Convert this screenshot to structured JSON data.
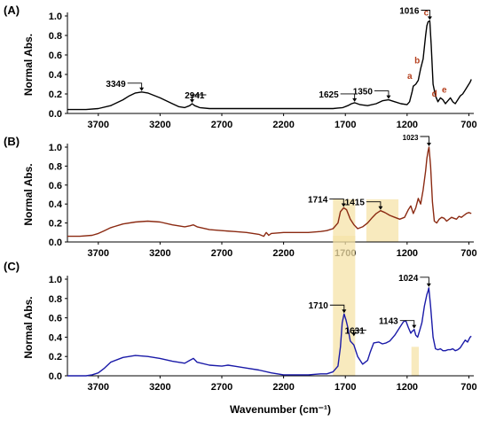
{
  "x_axis_title": "Wavenumber (cm⁻¹)",
  "y_axis_title": "Normal Abs.",
  "chart_data": [
    {
      "type": "line",
      "panel_label": "(A)",
      "ylabel": "Normal Abs.",
      "xlabel": "",
      "x_reversed": true,
      "xlim": [
        3950,
        660
      ],
      "ylim": [
        0,
        1.0
      ],
      "x_ticks": [
        "3700",
        "3200",
        "2700",
        "2200",
        "1700",
        "1200",
        "700"
      ],
      "y_ticks": [
        "0.0",
        "0.2",
        "0.4",
        "0.6",
        "0.8",
        "1.0"
      ],
      "line_color": "#000000",
      "series": [
        {
          "x": [
            3950,
            3800,
            3700,
            3600,
            3500,
            3450,
            3400,
            3349,
            3300,
            3200,
            3100,
            3050,
            3000,
            2960,
            2941,
            2920,
            2880,
            2800,
            2700,
            2500,
            2300,
            2100,
            1900,
            1800,
            1720,
            1680,
            1650,
            1625,
            1580,
            1520,
            1450,
            1400,
            1350,
            1300,
            1250,
            1200,
            1180,
            1160,
            1150,
            1130,
            1110,
            1090,
            1070,
            1050,
            1040,
            1030,
            1016,
            1005,
            990,
            970,
            950,
            930,
            910,
            890,
            870,
            850,
            830,
            810,
            790,
            770,
            750,
            730,
            710,
            690,
            680
          ],
          "y": [
            0.04,
            0.04,
            0.05,
            0.08,
            0.14,
            0.18,
            0.21,
            0.22,
            0.21,
            0.16,
            0.1,
            0.07,
            0.06,
            0.08,
            0.1,
            0.08,
            0.06,
            0.05,
            0.05,
            0.05,
            0.05,
            0.05,
            0.05,
            0.05,
            0.06,
            0.08,
            0.1,
            0.11,
            0.09,
            0.08,
            0.1,
            0.13,
            0.14,
            0.12,
            0.1,
            0.09,
            0.12,
            0.22,
            0.28,
            0.3,
            0.34,
            0.46,
            0.56,
            0.8,
            0.9,
            0.94,
            0.95,
            0.7,
            0.3,
            0.18,
            0.12,
            0.16,
            0.14,
            0.1,
            0.13,
            0.16,
            0.12,
            0.1,
            0.14,
            0.18,
            0.2,
            0.24,
            0.28,
            0.32,
            0.35
          ]
        }
      ],
      "annotations": [
        {
          "text": "3349",
          "x": 3349,
          "y": 0.22
        },
        {
          "text": "2941",
          "x": 2941,
          "y": 0.1
        },
        {
          "text": "1625",
          "x": 1625,
          "y": 0.11
        },
        {
          "text": "1350",
          "x": 1350,
          "y": 0.14
        },
        {
          "text": "1016",
          "x": 1016,
          "y": 0.95
        }
      ],
      "band_labels": [
        {
          "text": "a",
          "x": 1150,
          "y": 0.3
        },
        {
          "text": "b",
          "x": 1090,
          "y": 0.46
        },
        {
          "text": "c",
          "x": 1016,
          "y": 0.95
        },
        {
          "text": "d",
          "x": 950,
          "y": 0.12
        },
        {
          "text": "e",
          "x": 870,
          "y": 0.16
        }
      ]
    },
    {
      "type": "line",
      "panel_label": "(B)",
      "ylabel": "Normal Abs.",
      "xlabel": "",
      "x_reversed": true,
      "xlim": [
        3950,
        660
      ],
      "ylim": [
        0,
        1.0
      ],
      "x_ticks": [
        "3700",
        "3200",
        "2700",
        "2200",
        "1700",
        "1200",
        "700"
      ],
      "y_ticks": [
        "0.0",
        "0.2",
        "0.4",
        "0.6",
        "0.8",
        "1.0"
      ],
      "line_color": "#8b2a12",
      "series": [
        {
          "x": [
            3950,
            3850,
            3750,
            3700,
            3650,
            3600,
            3500,
            3400,
            3300,
            3200,
            3100,
            3000,
            2960,
            2930,
            2900,
            2800,
            2700,
            2600,
            2500,
            2400,
            2360,
            2340,
            2320,
            2300,
            2200,
            2100,
            2000,
            1900,
            1850,
            1800,
            1760,
            1740,
            1714,
            1690,
            1660,
            1630,
            1600,
            1560,
            1520,
            1480,
            1450,
            1415,
            1380,
            1340,
            1300,
            1260,
            1220,
            1190,
            1170,
            1150,
            1130,
            1110,
            1090,
            1070,
            1050,
            1040,
            1030,
            1023,
            1010,
            995,
            980,
            960,
            940,
            920,
            900,
            880,
            860,
            840,
            820,
            800,
            780,
            760,
            740,
            720,
            700,
            680
          ],
          "y": [
            0.06,
            0.06,
            0.07,
            0.09,
            0.12,
            0.15,
            0.19,
            0.21,
            0.22,
            0.21,
            0.18,
            0.16,
            0.17,
            0.18,
            0.16,
            0.13,
            0.12,
            0.11,
            0.1,
            0.08,
            0.06,
            0.1,
            0.07,
            0.09,
            0.1,
            0.1,
            0.1,
            0.11,
            0.12,
            0.14,
            0.2,
            0.32,
            0.36,
            0.34,
            0.24,
            0.18,
            0.14,
            0.16,
            0.2,
            0.26,
            0.3,
            0.33,
            0.31,
            0.28,
            0.26,
            0.24,
            0.26,
            0.34,
            0.38,
            0.3,
            0.36,
            0.46,
            0.4,
            0.55,
            0.75,
            0.88,
            0.96,
            1.0,
            0.8,
            0.42,
            0.22,
            0.2,
            0.24,
            0.26,
            0.25,
            0.22,
            0.24,
            0.26,
            0.25,
            0.24,
            0.27,
            0.26,
            0.28,
            0.3,
            0.31,
            0.3
          ]
        }
      ],
      "annotations": [
        {
          "text": "1714",
          "x": 1714,
          "y": 0.36
        },
        {
          "text": "1415",
          "x": 1415,
          "y": 0.33
        },
        {
          "text": "1023",
          "x": 1023,
          "y": 1.0
        }
      ],
      "highlight_bands": [
        [
          1800,
          1620
        ],
        [
          1530,
          1270
        ]
      ]
    },
    {
      "type": "line",
      "panel_label": "(C)",
      "ylabel": "Normal Abs.",
      "xlabel": "Wavenumber (cm⁻¹)",
      "x_reversed": true,
      "xlim": [
        3950,
        660
      ],
      "ylim": [
        0,
        1.0
      ],
      "x_ticks": [
        "3700",
        "3200",
        "2700",
        "2200",
        "1700",
        "1200",
        "700"
      ],
      "y_ticks": [
        "0.0",
        "0.2",
        "0.4",
        "0.6",
        "0.8",
        "1.0"
      ],
      "line_color": "#1a1aa8",
      "series": [
        {
          "x": [
            3950,
            3800,
            3750,
            3700,
            3650,
            3600,
            3500,
            3400,
            3300,
            3200,
            3100,
            3000,
            2960,
            2930,
            2900,
            2800,
            2700,
            2650,
            2600,
            2500,
            2400,
            2300,
            2200,
            2100,
            2000,
            1900,
            1850,
            1800,
            1760,
            1740,
            1725,
            1710,
            1695,
            1680,
            1660,
            1631,
            1600,
            1560,
            1520,
            1500,
            1470,
            1430,
            1400,
            1370,
            1340,
            1300,
            1260,
            1230,
            1210,
            1190,
            1170,
            1160,
            1150,
            1143,
            1130,
            1115,
            1100,
            1080,
            1060,
            1040,
            1030,
            1024,
            1010,
            990,
            970,
            950,
            930,
            910,
            890,
            870,
            850,
            830,
            810,
            790,
            770,
            750,
            730,
            710,
            690,
            680
          ],
          "y": [
            0.0,
            0.0,
            0.01,
            0.03,
            0.08,
            0.14,
            0.19,
            0.21,
            0.2,
            0.18,
            0.15,
            0.13,
            0.16,
            0.18,
            0.14,
            0.11,
            0.1,
            0.11,
            0.1,
            0.08,
            0.06,
            0.03,
            0.01,
            0.01,
            0.01,
            0.02,
            0.02,
            0.04,
            0.1,
            0.3,
            0.55,
            0.64,
            0.58,
            0.5,
            0.36,
            0.32,
            0.2,
            0.12,
            0.16,
            0.24,
            0.34,
            0.35,
            0.33,
            0.34,
            0.36,
            0.42,
            0.5,
            0.56,
            0.57,
            0.5,
            0.44,
            0.46,
            0.47,
            0.48,
            0.42,
            0.4,
            0.46,
            0.55,
            0.72,
            0.84,
            0.88,
            0.91,
            0.72,
            0.4,
            0.28,
            0.27,
            0.28,
            0.26,
            0.26,
            0.27,
            0.27,
            0.28,
            0.26,
            0.27,
            0.29,
            0.33,
            0.37,
            0.35,
            0.4,
            0.41
          ]
        }
      ],
      "annotations": [
        {
          "text": "1710",
          "x": 1710,
          "y": 0.64
        },
        {
          "text": "1631",
          "x": 1631,
          "y": 0.4
        },
        {
          "text": "1143",
          "x": 1143,
          "y": 0.48
        },
        {
          "text": "1024",
          "x": 1024,
          "y": 0.91
        }
      ],
      "highlight_bands": [
        [
          1800,
          1620
        ],
        [
          1165,
          1105
        ]
      ]
    }
  ]
}
